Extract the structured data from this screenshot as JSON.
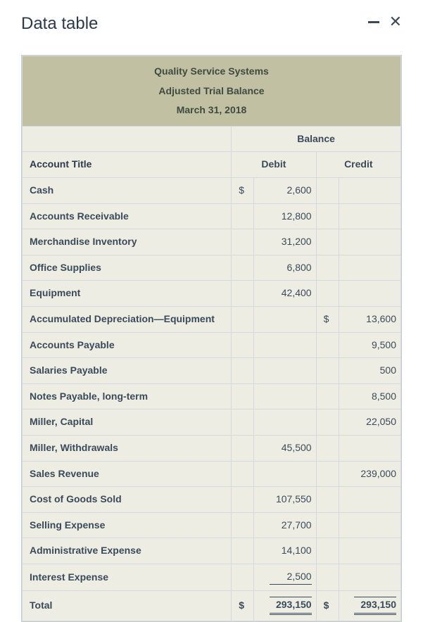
{
  "page": {
    "title": "Data table"
  },
  "window": {
    "minimize_label": "minimize",
    "close_label": "close"
  },
  "report": {
    "company": "Quality Service Systems",
    "statement": "Adjusted Trial Balance",
    "date": "March 31, 2018",
    "balance_label": "Balance",
    "account_title_label": "Account Title",
    "debit_label": "Debit",
    "credit_label": "Credit",
    "currency_symbol": "$",
    "rows": [
      {
        "account": "Cash",
        "debit": "2,600",
        "credit": "",
        "debit_sym": "$",
        "credit_sym": ""
      },
      {
        "account": "Accounts Receivable",
        "debit": "12,800",
        "credit": "",
        "debit_sym": "",
        "credit_sym": ""
      },
      {
        "account": "Merchandise Inventory",
        "debit": "31,200",
        "credit": "",
        "debit_sym": "",
        "credit_sym": ""
      },
      {
        "account": "Office Supplies",
        "debit": "6,800",
        "credit": "",
        "debit_sym": "",
        "credit_sym": ""
      },
      {
        "account": "Equipment",
        "debit": "42,400",
        "credit": "",
        "debit_sym": "",
        "credit_sym": ""
      },
      {
        "account": "Accumulated Depreciation—Equipment",
        "debit": "",
        "credit": "13,600",
        "debit_sym": "",
        "credit_sym": "$"
      },
      {
        "account": "Accounts Payable",
        "debit": "",
        "credit": "9,500",
        "debit_sym": "",
        "credit_sym": ""
      },
      {
        "account": "Salaries Payable",
        "debit": "",
        "credit": "500",
        "debit_sym": "",
        "credit_sym": ""
      },
      {
        "account": "Notes Payable, long-term",
        "debit": "",
        "credit": "8,500",
        "debit_sym": "",
        "credit_sym": ""
      },
      {
        "account": "Miller, Capital",
        "debit": "",
        "credit": "22,050",
        "debit_sym": "",
        "credit_sym": ""
      },
      {
        "account": "Miller, Withdrawals",
        "debit": "45,500",
        "credit": "",
        "debit_sym": "",
        "credit_sym": ""
      },
      {
        "account": "Sales Revenue",
        "debit": "",
        "credit": "239,000",
        "debit_sym": "",
        "credit_sym": ""
      },
      {
        "account": "Cost of Goods Sold",
        "debit": "107,550",
        "credit": "",
        "debit_sym": "",
        "credit_sym": ""
      },
      {
        "account": "Selling Expense",
        "debit": "27,700",
        "credit": "",
        "debit_sym": "",
        "credit_sym": ""
      },
      {
        "account": "Administrative Expense",
        "debit": "14,100",
        "credit": "",
        "debit_sym": "",
        "credit_sym": ""
      },
      {
        "account": "Interest Expense",
        "debit": "2,500",
        "credit": "",
        "debit_sym": "",
        "credit_sym": "",
        "underline": true
      }
    ],
    "total": {
      "label": "Total",
      "debit_sym": "$",
      "debit": "293,150",
      "credit_sym": "$",
      "credit": "293,150"
    }
  },
  "styling": {
    "colors": {
      "page_bg": "#ffffff",
      "table_bg": "#eeede3",
      "header_bg": "#c1c0a3",
      "border": "#d4d9dd",
      "outer_border": "#c8cdd2",
      "text": "#3a4a5a",
      "title_text": "#2b3a4a"
    },
    "font_family": "Arial, Helvetica, sans-serif",
    "page_title_fontsize": 24,
    "table_fontsize": 14
  }
}
